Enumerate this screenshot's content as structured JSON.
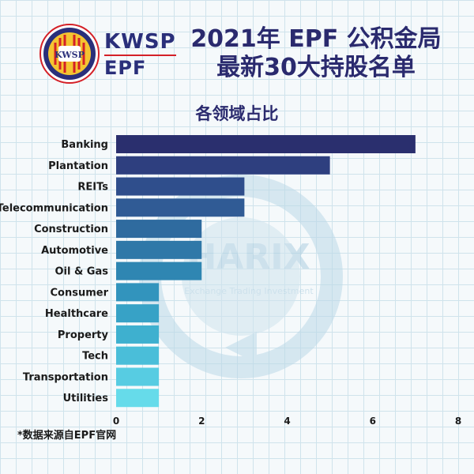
{
  "logo": {
    "line1": "KWSP",
    "line2": "EPF",
    "seal_text": "KWSP"
  },
  "title_line1": "2021年 EPF 公积金局",
  "title_line2": "最新30大持股名单",
  "footnote": "*数据来源自EPF官网",
  "watermark": {
    "text": "HARIX",
    "tagline": "Exchange Trading Investment"
  },
  "chart_data": {
    "type": "bar",
    "orientation": "horizontal",
    "title": "各领域占比",
    "categories": [
      "Banking",
      "Plantation",
      "REITs",
      "Telecommunication",
      "Construction",
      "Automotive",
      "Oil & Gas",
      "Consumer",
      "Healthcare",
      "Property",
      "Tech",
      "Transportation",
      "Utilities"
    ],
    "values": [
      7,
      5,
      3,
      3,
      2,
      2,
      2,
      1,
      1,
      1,
      1,
      1,
      1
    ],
    "xlim": [
      0,
      8
    ],
    "xticks": [
      0,
      2,
      4,
      6,
      8
    ],
    "grid": false,
    "colors": [
      "#2a2f6e",
      "#2e3f7f",
      "#2f4e8c",
      "#305b95",
      "#2f6b9f",
      "#2f78a8",
      "#2f86b2",
      "#3294bd",
      "#37a2c6",
      "#3eb0cf",
      "#4abed9",
      "#57cce2",
      "#66dbea"
    ]
  }
}
